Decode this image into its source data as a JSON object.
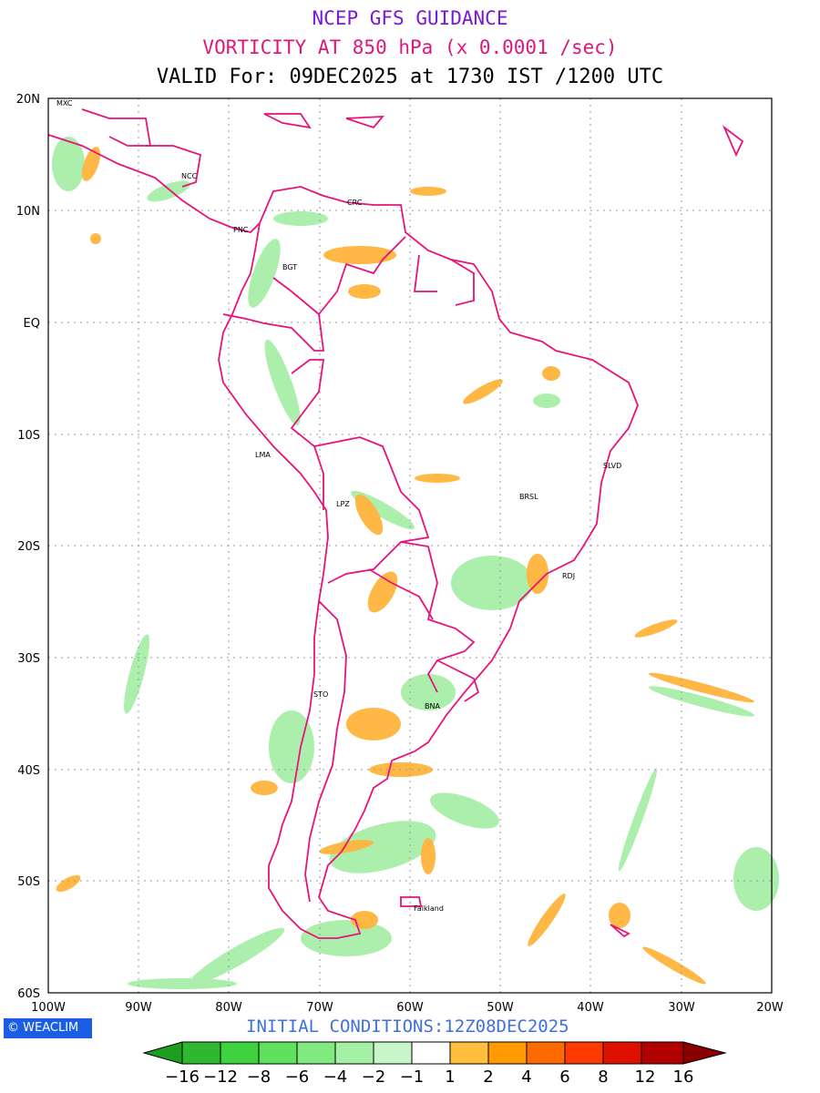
{
  "header": {
    "title": "NCEP GFS GUIDANCE",
    "subtitle": "VORTICITY AT 850 hPa (x 0.0001 /sec)",
    "valid_line": "VALID For: 09DEC2025 at 1730 IST /1200 UTC"
  },
  "map": {
    "region": "South America",
    "lat_labels": [
      "20N",
      "10N",
      "EQ",
      "10S",
      "20S",
      "30S",
      "40S",
      "50S",
      "60S"
    ],
    "lon_labels": [
      "100W",
      "90W",
      "80W",
      "70W",
      "60W",
      "50W",
      "40W",
      "30W",
      "20W"
    ],
    "city_labels": [
      {
        "name": "MXC"
      },
      {
        "name": "NCC"
      },
      {
        "name": "PNC"
      },
      {
        "name": "CRC"
      },
      {
        "name": "BGT"
      },
      {
        "name": "LMA"
      },
      {
        "name": "LPZ"
      },
      {
        "name": "BRSL"
      },
      {
        "name": "SLVD"
      },
      {
        "name": "RDJ"
      },
      {
        "name": "STO"
      },
      {
        "name": "BNA"
      },
      {
        "name": "Falkland"
      }
    ],
    "colors": {
      "boundary": "#e8137a",
      "negative_vorticity": "#90e890",
      "positive_vorticity": "#ffb030",
      "grid": "#999999"
    }
  },
  "footer": {
    "logo_text": "WEACLIM",
    "initial_conditions": "INITIAL CONDITIONS:12Z08DEC2025"
  },
  "colorbar": {
    "labels": [
      "−16",
      "−12",
      "−8",
      "−6",
      "−4",
      "−2",
      "−1",
      "1",
      "2",
      "4",
      "6",
      "8",
      "12",
      "16"
    ],
    "colors": [
      "#1e9e1e",
      "#2fb82f",
      "#3fd23f",
      "#5fe05f",
      "#80ea80",
      "#a4f0a4",
      "#c8f6c8",
      "#ffffff",
      "#ffbe3c",
      "#ff9a00",
      "#ff6a00",
      "#ff3a00",
      "#e01000",
      "#b00000",
      "#8a0000"
    ]
  }
}
